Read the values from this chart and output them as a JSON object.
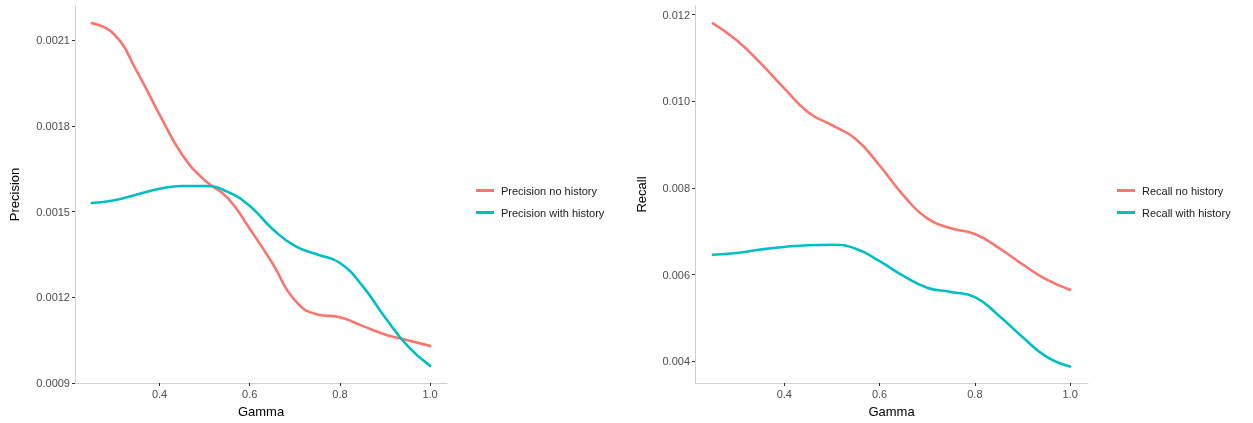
{
  "chart_data": [
    {
      "type": "line",
      "xlabel": "Gamma",
      "ylabel": "Precision",
      "x": [
        0.25,
        0.3,
        0.35,
        0.4,
        0.45,
        0.5,
        0.55,
        0.6,
        0.65,
        0.7,
        0.75,
        0.8,
        0.85,
        0.9,
        0.95,
        1.0
      ],
      "series": [
        {
          "name": "Precision no history",
          "color": "#f8766d",
          "values": [
            0.00216,
            0.00212,
            0.00199,
            0.00184,
            0.0017,
            0.00161,
            0.00155,
            0.00144,
            0.00132,
            0.00119,
            0.00114,
            0.00113,
            0.0011,
            0.00107,
            0.00105,
            0.00103
          ]
        },
        {
          "name": "Precision with history",
          "color": "#00bfc4",
          "values": [
            0.00153,
            0.00154,
            0.00156,
            0.00158,
            0.00159,
            0.00159,
            0.00157,
            0.00152,
            0.00144,
            0.00138,
            0.00135,
            0.00132,
            0.00124,
            0.00113,
            0.00103,
            0.00096
          ]
        }
      ],
      "xlim": [
        0.2125,
        1.0375
      ],
      "xticks": [
        0.4,
        0.6,
        0.8,
        {
          "value": 1,
          "label": "1.0"
        }
      ],
      "ylim": [
        0.0009,
        0.00222
      ],
      "yticks": [
        0.0009,
        0.0012,
        0.0015,
        0.0018,
        0.0021
      ],
      "grid": false,
      "legend": "right",
      "marker": "none",
      "line_style": "solid"
    },
    {
      "type": "line",
      "xlabel": "Gamma",
      "ylabel": "Recall",
      "x": [
        0.25,
        0.3,
        0.35,
        0.4,
        0.45,
        0.5,
        0.55,
        0.6,
        0.65,
        0.7,
        0.75,
        0.8,
        0.85,
        0.9,
        0.95,
        1.0
      ],
      "series": [
        {
          "name": "Recall no history",
          "color": "#f8766d",
          "values": [
            0.0118,
            0.01141,
            0.01088,
            0.0103,
            0.00975,
            0.00945,
            0.00913,
            0.00852,
            0.00783,
            0.0073,
            0.00707,
            0.00694,
            0.00662,
            0.00624,
            0.00589,
            0.00565
          ]
        },
        {
          "name": "Recall with history",
          "color": "#00bfc4",
          "values": [
            0.00646,
            0.0065,
            0.00658,
            0.00664,
            0.00668,
            0.00669,
            0.0066,
            0.00631,
            0.00597,
            0.0057,
            0.0056,
            0.00548,
            0.00506,
            0.00456,
            0.00411,
            0.00388
          ]
        }
      ],
      "xlim": [
        0.2125,
        1.0375
      ],
      "xticks": [
        0.4,
        0.6,
        0.8,
        {
          "value": 1,
          "label": "1.0"
        }
      ],
      "ylim": [
        0.0035,
        0.0122
      ],
      "yticks": [
        0.004,
        0.006,
        0.008,
        {
          "value": 0.01,
          "label": "0.010"
        },
        0.012
      ],
      "grid": false,
      "legend": "right",
      "marker": "none",
      "line_style": "solid"
    }
  ]
}
